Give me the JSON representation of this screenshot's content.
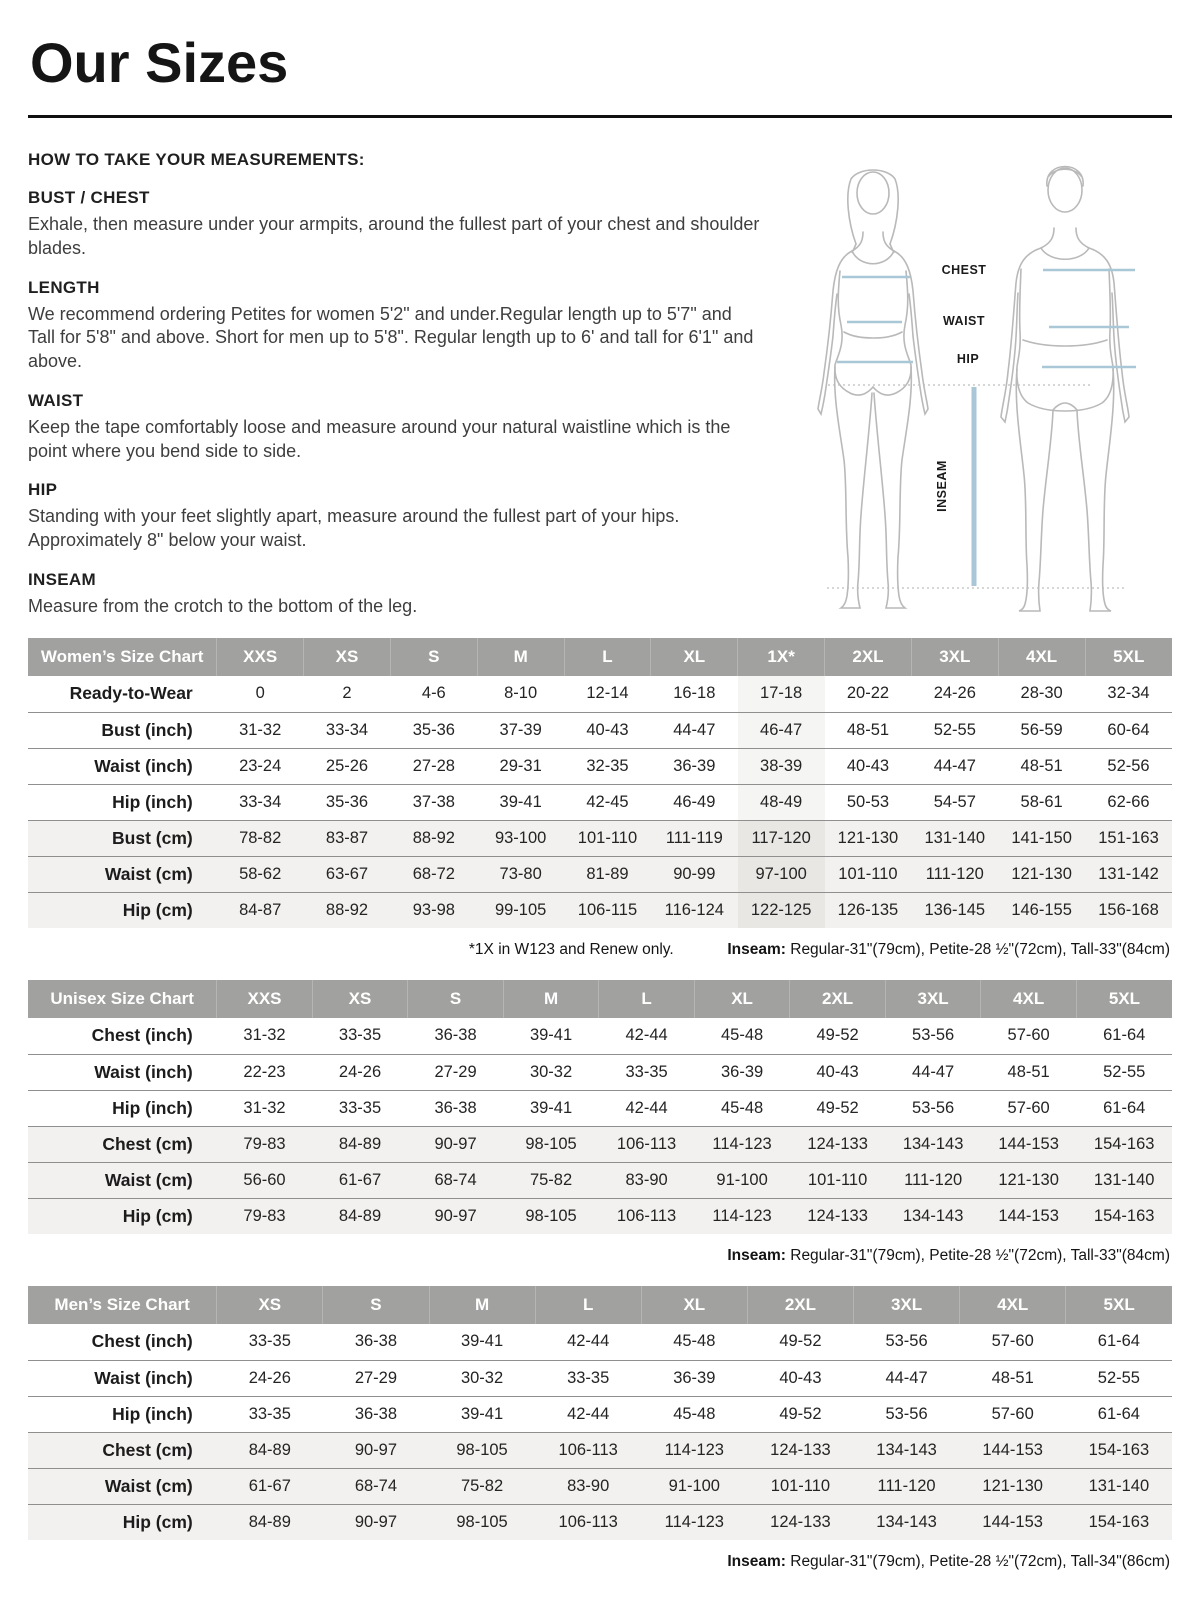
{
  "page": {
    "title": "Our Sizes"
  },
  "instructions": {
    "heading": "HOW TO TAKE YOUR MEASUREMENTS:",
    "sections": [
      {
        "title": "BUST / CHEST",
        "body": "Exhale, then measure under your armpits, around the fullest part of your chest and shoulder blades."
      },
      {
        "title": "LENGTH",
        "body": "We recommend ordering Petites for women 5'2\" and under.Regular length up to 5'7\" and Tall for 5'8\" and above. Short for men up to 5'8\". Regular length up to 6' and tall for 6'1\" and above."
      },
      {
        "title": "WAIST",
        "body": "Keep the tape comfortably loose and measure around your natural waistline which is the point where you bend side to side."
      },
      {
        "title": "HIP",
        "body": "Standing with your feet slightly apart, measure around the fullest part of your hips. Approximately 8\" below your waist."
      },
      {
        "title": "INSEAM",
        "body": "Measure from the crotch to the bottom of the leg."
      }
    ]
  },
  "diagram": {
    "labels": {
      "chest": "CHEST",
      "waist": "WAIST",
      "hip": "HIP",
      "inseam": "INSEAM"
    },
    "line_color": "#a9c7d7",
    "figure_color": "#b9b9b9"
  },
  "tables": [
    {
      "id": "womens-size-chart",
      "title": "Women’s Size Chart",
      "sizes": [
        "XXS",
        "XS",
        "S",
        "M",
        "L",
        "XL",
        "1X*",
        "2XL",
        "3XL",
        "4XL",
        "5XL"
      ],
      "highlight_size": "1X*",
      "rows": [
        {
          "label": "Ready-to-Wear",
          "shaded": false,
          "values": [
            "0",
            "2",
            "4-6",
            "8-10",
            "12-14",
            "16-18",
            "17-18",
            "20-22",
            "24-26",
            "28-30",
            "32-34"
          ]
        },
        {
          "label": "Bust (inch)",
          "shaded": false,
          "values": [
            "31-32",
            "33-34",
            "35-36",
            "37-39",
            "40-43",
            "44-47",
            "46-47",
            "48-51",
            "52-55",
            "56-59",
            "60-64"
          ]
        },
        {
          "label": "Waist (inch)",
          "shaded": false,
          "values": [
            "23-24",
            "25-26",
            "27-28",
            "29-31",
            "32-35",
            "36-39",
            "38-39",
            "40-43",
            "44-47",
            "48-51",
            "52-56"
          ]
        },
        {
          "label": "Hip (inch)",
          "shaded": false,
          "values": [
            "33-34",
            "35-36",
            "37-38",
            "39-41",
            "42-45",
            "46-49",
            "48-49",
            "50-53",
            "54-57",
            "58-61",
            "62-66"
          ]
        },
        {
          "label": "Bust (cm)",
          "shaded": true,
          "values": [
            "78-82",
            "83-87",
            "88-92",
            "93-100",
            "101-110",
            "111-119",
            "117-120",
            "121-130",
            "131-140",
            "141-150",
            "151-163"
          ]
        },
        {
          "label": "Waist (cm)",
          "shaded": true,
          "values": [
            "58-62",
            "63-67",
            "68-72",
            "73-80",
            "81-89",
            "90-99",
            "97-100",
            "101-110",
            "111-120",
            "121-130",
            "131-142"
          ]
        },
        {
          "label": "Hip (cm)",
          "shaded": true,
          "values": [
            "84-87",
            "88-92",
            "93-98",
            "99-105",
            "106-115",
            "116-124",
            "122-125",
            "126-135",
            "136-145",
            "146-155",
            "156-168"
          ]
        }
      ],
      "footnote_left": "*1X in W123 and Renew only.",
      "footnote_inseam_label": "Inseam:",
      "footnote_inseam_text": " Regular-31\"(79cm), Petite-28 ½\"(72cm), Tall-33\"(84cm)"
    },
    {
      "id": "unisex-size-chart",
      "title": "Unisex Size Chart",
      "sizes": [
        "XXS",
        "XS",
        "S",
        "M",
        "L",
        "XL",
        "2XL",
        "3XL",
        "4XL",
        "5XL"
      ],
      "highlight_size": null,
      "rows": [
        {
          "label": "Chest (inch)",
          "shaded": false,
          "values": [
            "31-32",
            "33-35",
            "36-38",
            "39-41",
            "42-44",
            "45-48",
            "49-52",
            "53-56",
            "57-60",
            "61-64"
          ]
        },
        {
          "label": "Waist (inch)",
          "shaded": false,
          "values": [
            "22-23",
            "24-26",
            "27-29",
            "30-32",
            "33-35",
            "36-39",
            "40-43",
            "44-47",
            "48-51",
            "52-55"
          ]
        },
        {
          "label": "Hip (inch)",
          "shaded": false,
          "values": [
            "31-32",
            "33-35",
            "36-38",
            "39-41",
            "42-44",
            "45-48",
            "49-52",
            "53-56",
            "57-60",
            "61-64"
          ]
        },
        {
          "label": "Chest (cm)",
          "shaded": true,
          "values": [
            "79-83",
            "84-89",
            "90-97",
            "98-105",
            "106-113",
            "114-123",
            "124-133",
            "134-143",
            "144-153",
            "154-163"
          ]
        },
        {
          "label": "Waist (cm)",
          "shaded": true,
          "values": [
            "56-60",
            "61-67",
            "68-74",
            "75-82",
            "83-90",
            "91-100",
            "101-110",
            "111-120",
            "121-130",
            "131-140"
          ]
        },
        {
          "label": "Hip (cm)",
          "shaded": true,
          "values": [
            "79-83",
            "84-89",
            "90-97",
            "98-105",
            "106-113",
            "114-123",
            "124-133",
            "134-143",
            "144-153",
            "154-163"
          ]
        }
      ],
      "footnote_left": null,
      "footnote_inseam_label": "Inseam:",
      "footnote_inseam_text": " Regular-31\"(79cm), Petite-28 ½\"(72cm), Tall-33\"(84cm)"
    },
    {
      "id": "mens-size-chart",
      "title": "Men’s Size Chart",
      "sizes": [
        "XS",
        "S",
        "M",
        "L",
        "XL",
        "2XL",
        "3XL",
        "4XL",
        "5XL"
      ],
      "highlight_size": null,
      "rows": [
        {
          "label": "Chest (inch)",
          "shaded": false,
          "values": [
            "33-35",
            "36-38",
            "39-41",
            "42-44",
            "45-48",
            "49-52",
            "53-56",
            "57-60",
            "61-64"
          ]
        },
        {
          "label": "Waist (inch)",
          "shaded": false,
          "values": [
            "24-26",
            "27-29",
            "30-32",
            "33-35",
            "36-39",
            "40-43",
            "44-47",
            "48-51",
            "52-55"
          ]
        },
        {
          "label": "Hip (inch)",
          "shaded": false,
          "values": [
            "33-35",
            "36-38",
            "39-41",
            "42-44",
            "45-48",
            "49-52",
            "53-56",
            "57-60",
            "61-64"
          ]
        },
        {
          "label": "Chest (cm)",
          "shaded": true,
          "values": [
            "84-89",
            "90-97",
            "98-105",
            "106-113",
            "114-123",
            "124-133",
            "134-143",
            "144-153",
            "154-163"
          ]
        },
        {
          "label": "Waist (cm)",
          "shaded": true,
          "values": [
            "61-67",
            "68-74",
            "75-82",
            "83-90",
            "91-100",
            "101-110",
            "111-120",
            "121-130",
            "131-140"
          ]
        },
        {
          "label": "Hip (cm)",
          "shaded": true,
          "values": [
            "84-89",
            "90-97",
            "98-105",
            "106-113",
            "114-123",
            "124-133",
            "134-143",
            "144-153",
            "154-163"
          ]
        }
      ],
      "footnote_left": null,
      "footnote_inseam_label": "Inseam:",
      "footnote_inseam_text": " Regular-31\"(79cm), Petite-28 ½\"(72cm), Tall-34\"(86cm)"
    }
  ]
}
